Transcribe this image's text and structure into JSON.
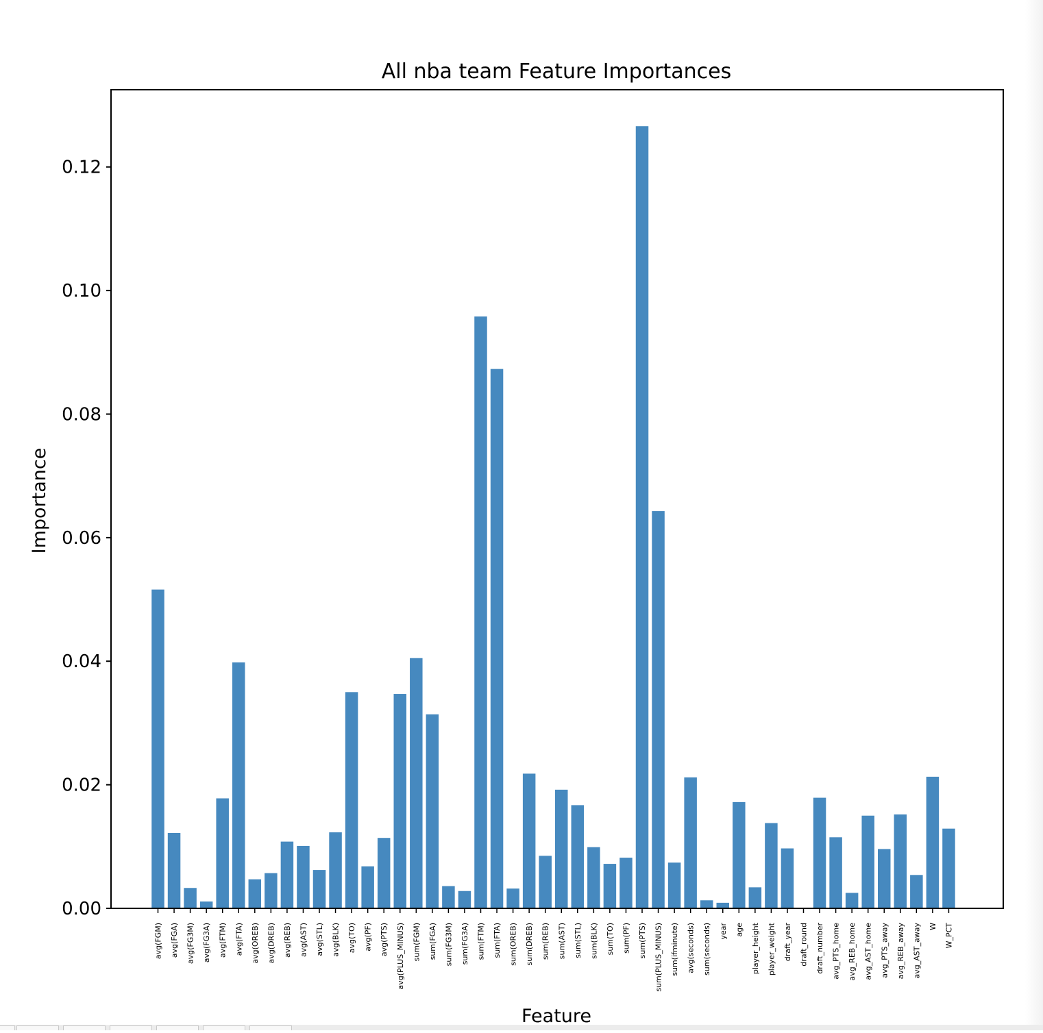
{
  "chart_data": {
    "type": "bar",
    "title": "All nba team Feature Importances",
    "xlabel": "Feature",
    "ylabel": "Importance",
    "ylim": [
      0,
      0.1325
    ],
    "yticks": [
      0.0,
      0.02,
      0.04,
      0.06,
      0.08,
      0.1,
      0.12
    ],
    "ytick_labels": [
      "0.00",
      "0.02",
      "0.04",
      "0.06",
      "0.08",
      "0.10",
      "0.12"
    ],
    "bar_color": "#4689bf",
    "grid": false,
    "categories": [
      "avg(FGM)",
      "avg(FGA)",
      "avg(FG3M)",
      "avg(FG3A)",
      "avg(FTM)",
      "avg(FTA)",
      "avg(OREB)",
      "avg(DREB)",
      "avg(REB)",
      "avg(AST)",
      "avg(STL)",
      "avg(BLK)",
      "avg(TO)",
      "avg(PF)",
      "avg(PTS)",
      "avg(PLUS_MINUS)",
      "sum(FGM)",
      "sum(FGA)",
      "sum(FG3M)",
      "sum(FG3A)",
      "sum(FTM)",
      "sum(FTA)",
      "sum(OREB)",
      "sum(DREB)",
      "sum(REB)",
      "sum(AST)",
      "sum(STL)",
      "sum(BLK)",
      "sum(TO)",
      "sum(PF)",
      "sum(PTS)",
      "sum(PLUS_MINUS)",
      "sum(ifminute)",
      "avg(seconds)",
      "sum(seconds)",
      "year",
      "age",
      "player_height",
      "player_weight",
      "draft_year",
      "draft_round",
      "draft_number",
      "avg_PTS_home",
      "avg_REB_home",
      "avg_AST_home",
      "avg_PTS_away",
      "avg_REB_away",
      "avg_AST_away",
      "W",
      "W_PCT"
    ],
    "values": [
      0.0516,
      0.0122,
      0.0033,
      0.0011,
      0.0178,
      0.0398,
      0.0047,
      0.0057,
      0.0108,
      0.0101,
      0.0062,
      0.0123,
      0.035,
      0.0068,
      0.0114,
      0.0347,
      0.0405,
      0.0314,
      0.0036,
      0.0028,
      0.0958,
      0.0873,
      0.0032,
      0.0218,
      0.0085,
      0.0192,
      0.0167,
      0.0099,
      0.0072,
      0.0082,
      0.1266,
      0.0643,
      0.0074,
      0.0212,
      0.0013,
      0.0009,
      0.0172,
      0.0034,
      0.0138,
      0.0097,
      0.0,
      0.0179,
      0.0115,
      0.0025,
      0.015,
      0.0096,
      0.0152,
      0.0054,
      0.0213,
      0.0129
    ]
  }
}
